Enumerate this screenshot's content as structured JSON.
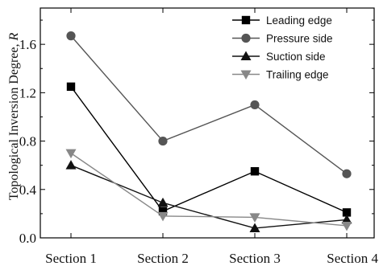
{
  "chart_data": {
    "type": "line",
    "categories": [
      "Section 1",
      "Section 2",
      "Section 3",
      "Section 4"
    ],
    "ylabel_main": "Topological Inversion Degree, ",
    "ylabel_symbol": "R",
    "xlabel": "",
    "ylim": [
      0.0,
      1.9
    ],
    "yticks": [
      "0.0",
      "0.4",
      "0.8",
      "1.2",
      "1.6"
    ],
    "grid": false,
    "legend_position": "top-right",
    "series": [
      {
        "name": "Leading edge",
        "values": [
          1.25,
          0.22,
          0.55,
          0.21
        ],
        "marker": "square",
        "color": "#000000"
      },
      {
        "name": "Pressure side",
        "values": [
          1.67,
          0.8,
          1.1,
          0.53
        ],
        "marker": "circle",
        "color": "#555555"
      },
      {
        "name": "Suction side",
        "values": [
          0.6,
          0.29,
          0.08,
          0.15
        ],
        "marker": "triangle-up",
        "color": "#111111"
      },
      {
        "name": "Trailing edge",
        "values": [
          0.7,
          0.18,
          0.17,
          0.1
        ],
        "marker": "triangle-down",
        "color": "#888888"
      }
    ]
  }
}
